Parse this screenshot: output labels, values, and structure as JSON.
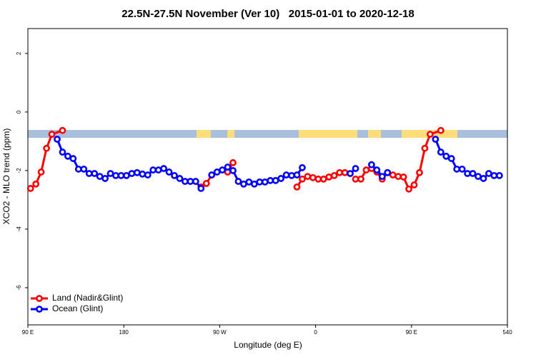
{
  "chart_data": {
    "type": "line",
    "title": "22.5N-27.5N November (Ver 10)   2015-01-01 to 2020-12-18",
    "x_label": "Longitude (deg E)",
    "y_label": "XCO2 - MLO trend (ppm)",
    "xlim": [
      90,
      540
    ],
    "xticks": [
      {
        "value": 90,
        "label": "90 E"
      },
      180,
      {
        "value": 270,
        "label": "90 W"
      },
      {
        "value": 360,
        "label": "0"
      },
      {
        "value": 450,
        "label": "90 E"
      },
      540
    ],
    "ylim": [
      -7.27,
      2.85
    ],
    "yticks": [
      2,
      0,
      -2,
      -4,
      -6
    ],
    "grid": false,
    "legend": "bottom-left",
    "series": [
      {
        "name": "Land (Nadir&Glint)",
        "color": "#ff0000",
        "x": [
          92.5,
          97.5,
          102.5,
          107.5,
          112.5,
          122.5,
          null,
          252.5,
          257.5,
          262.5,
          null,
          277.5,
          282.5,
          null,
          342.5,
          347.5,
          352.5,
          357.5,
          362.5,
          367.5,
          372.5,
          377.5,
          382.5,
          387.5,
          null,
          397.5,
          402.5,
          407.5,
          412.5,
          417.5,
          422.5,
          427.5,
          432.5,
          437.5,
          442.5,
          447.5,
          452.5,
          457.5,
          462.5,
          467.5,
          477.5
        ],
        "values": [
          -2.61,
          -2.46,
          -2.05,
          -1.24,
          -0.76,
          -0.63,
          null,
          -2.56,
          -2.44,
          -2.15,
          null,
          -2.05,
          -1.73,
          null,
          -2.56,
          -2.29,
          -2.2,
          -2.24,
          -2.29,
          -2.29,
          -2.22,
          -2.17,
          -2.07,
          -2.07,
          null,
          -2.29,
          -2.29,
          -1.98,
          -1.93,
          -2.05,
          -2.29,
          -2.07,
          -2.15,
          -2.2,
          -2.22,
          -2.63,
          -2.49,
          -2.07,
          -1.24,
          -0.76,
          -0.63
        ]
      },
      {
        "name": "Ocean (Glint)",
        "color": "#0000ff",
        "x": [
          117.5,
          122.5,
          127.5,
          132.5,
          137.5,
          142.5,
          147.5,
          152.5,
          157.5,
          162.5,
          167.5,
          172.5,
          177.5,
          182.5,
          187.5,
          192.5,
          197.5,
          202.5,
          207.5,
          212.5,
          217.5,
          222.5,
          227.5,
          232.5,
          237.5,
          242.5,
          247.5,
          252.5,
          null,
          262.5,
          267.5,
          272.5,
          277.5,
          282.5,
          287.5,
          292.5,
          297.5,
          302.5,
          307.5,
          312.5,
          317.5,
          322.5,
          327.5,
          332.5,
          337.5,
          342.5,
          347.5,
          null,
          392.5,
          397.5,
          null,
          412.5,
          417.5,
          422.5,
          427.5,
          null,
          472.5,
          477.5,
          482.5,
          487.5,
          492.5,
          497.5,
          502.5,
          507.5,
          512.5,
          517.5,
          522.5,
          527.5,
          532.5
        ],
        "values": [
          -0.93,
          -1.37,
          -1.51,
          -1.59,
          -1.95,
          -1.95,
          -2.1,
          -2.1,
          -2.2,
          -2.27,
          -2.1,
          -2.17,
          -2.17,
          -2.17,
          -2.1,
          -2.07,
          -2.12,
          -2.15,
          -1.98,
          -1.98,
          -1.93,
          -2.05,
          -2.17,
          -2.27,
          -2.37,
          -2.37,
          -2.37,
          -2.61,
          null,
          -2.15,
          -2.05,
          -1.98,
          -1.88,
          -2.0,
          -2.37,
          -2.46,
          -2.39,
          -2.46,
          -2.39,
          -2.39,
          -2.34,
          -2.34,
          -2.27,
          -2.15,
          -2.17,
          -2.15,
          -1.9,
          null,
          -2.1,
          -1.93,
          null,
          -1.8,
          -1.98,
          -2.2,
          -2.07,
          null,
          -0.93,
          -1.37,
          -1.51,
          -1.59,
          -1.95,
          -1.95,
          -2.1,
          -2.1,
          -2.2,
          -2.27,
          -2.1,
          -2.17,
          -2.17
        ]
      }
    ]
  }
}
